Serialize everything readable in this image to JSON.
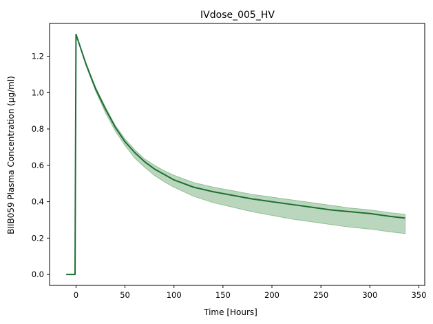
{
  "chart_data": {
    "type": "line",
    "title": "IVdose_005_HV",
    "xlabel": "Time [Hours]",
    "ylabel": "BIIB059 Plasma Concentration (µg/ml)",
    "xlim": [
      -10,
      336
    ],
    "ylim": [
      0,
      1.32
    ],
    "xticks": [
      0,
      50,
      100,
      150,
      200,
      250,
      300,
      350
    ],
    "yticks": [
      0.0,
      0.2,
      0.4,
      0.6,
      0.8,
      1.0,
      1.2
    ],
    "xtick_labels": [
      "0",
      "50",
      "100",
      "150",
      "200",
      "250",
      "300",
      "350"
    ],
    "ytick_labels": [
      "0.0",
      "0.2",
      "0.4",
      "0.6",
      "0.8",
      "1.0",
      "1.2"
    ],
    "grid": false,
    "colors": {
      "line": "#1f6e35",
      "band": "#8fbf95"
    },
    "series": [
      {
        "kind": "line",
        "x": [
          -10,
          -1,
          0,
          10,
          20,
          30,
          40,
          50,
          60,
          70,
          80,
          90,
          100,
          120,
          140,
          160,
          180,
          200,
          220,
          240,
          260,
          280,
          300,
          320,
          336
        ],
        "y": [
          0,
          0,
          1.32,
          1.16,
          1.02,
          0.91,
          0.81,
          0.73,
          0.67,
          0.62,
          0.58,
          0.55,
          0.52,
          0.48,
          0.455,
          0.435,
          0.415,
          0.4,
          0.385,
          0.37,
          0.355,
          0.345,
          0.335,
          0.32,
          0.31
        ]
      },
      {
        "kind": "band",
        "x": [
          0,
          10,
          20,
          30,
          40,
          50,
          60,
          70,
          80,
          90,
          100,
          120,
          140,
          160,
          180,
          200,
          220,
          240,
          260,
          280,
          300,
          320,
          336
        ],
        "lower": [
          1.32,
          1.15,
          1.01,
          0.89,
          0.79,
          0.71,
          0.64,
          0.59,
          0.545,
          0.51,
          0.48,
          0.43,
          0.395,
          0.37,
          0.345,
          0.325,
          0.305,
          0.29,
          0.275,
          0.26,
          0.25,
          0.235,
          0.225
        ],
        "upper": [
          1.32,
          1.16,
          1.03,
          0.92,
          0.82,
          0.745,
          0.685,
          0.635,
          0.6,
          0.57,
          0.545,
          0.505,
          0.48,
          0.46,
          0.44,
          0.425,
          0.41,
          0.395,
          0.38,
          0.365,
          0.355,
          0.34,
          0.33
        ]
      }
    ]
  }
}
